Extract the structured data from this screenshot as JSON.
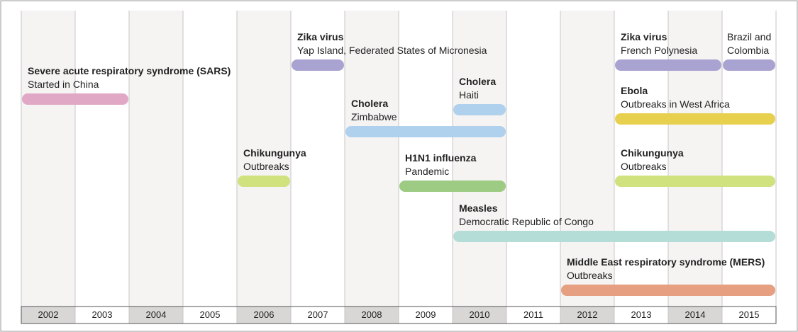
{
  "chart_data": {
    "type": "timeline",
    "xlim": [
      2002,
      2016
    ],
    "xticks": [
      2002,
      2003,
      2004,
      2005,
      2006,
      2007,
      2008,
      2009,
      2010,
      2011,
      2012,
      2013,
      2014,
      2015
    ],
    "bars": [
      {
        "name": "Severe acute respiratory syndrome (SARS)",
        "label": "Started in China",
        "start": 2002,
        "end": 2004,
        "color": "#e0a8c4"
      },
      {
        "name": "Zika virus",
        "label": "Yap Island, Federated States of Micronesia",
        "start": 2007,
        "end": 2008,
        "color": "#a9a3d1"
      },
      {
        "name": "Zika virus",
        "label": "French Polynesia",
        "start": 2013,
        "end": 2015,
        "color": "#a9a3d1"
      },
      {
        "label": "Brazil and Colombia",
        "start": 2015,
        "end": 2016,
        "color": "#a9a3d1"
      },
      {
        "name": "Cholera",
        "label": "Haiti",
        "start": 2010,
        "end": 2011,
        "color": "#b0d1ee"
      },
      {
        "name": "Cholera",
        "label": "Zimbabwe",
        "start": 2008,
        "end": 2011,
        "color": "#b0d1ee"
      },
      {
        "name": "Ebola",
        "label": "Outbreaks in West Africa",
        "start": 2013,
        "end": 2016,
        "color": "#e8d04f"
      },
      {
        "name": "Chikungunya",
        "label": "Outbreaks",
        "start": 2006,
        "end": 2007,
        "color": "#cfe27e"
      },
      {
        "name": "H1N1 influenza",
        "label": "Pandemic",
        "start": 2009,
        "end": 2011,
        "color": "#9dcb84"
      },
      {
        "name": "Chikungunya",
        "label": "Outbreaks",
        "start": 2013,
        "end": 2016,
        "color": "#cfe27e"
      },
      {
        "name": "Measles",
        "label": "Democratic Republic of Congo",
        "start": 2010,
        "end": 2016,
        "color": "#b3ddd6"
      },
      {
        "name": "Middle East respiratory syndrome (MERS)",
        "label": "Outbreaks",
        "start": 2012,
        "end": 2016,
        "color": "#e69f80"
      }
    ]
  }
}
